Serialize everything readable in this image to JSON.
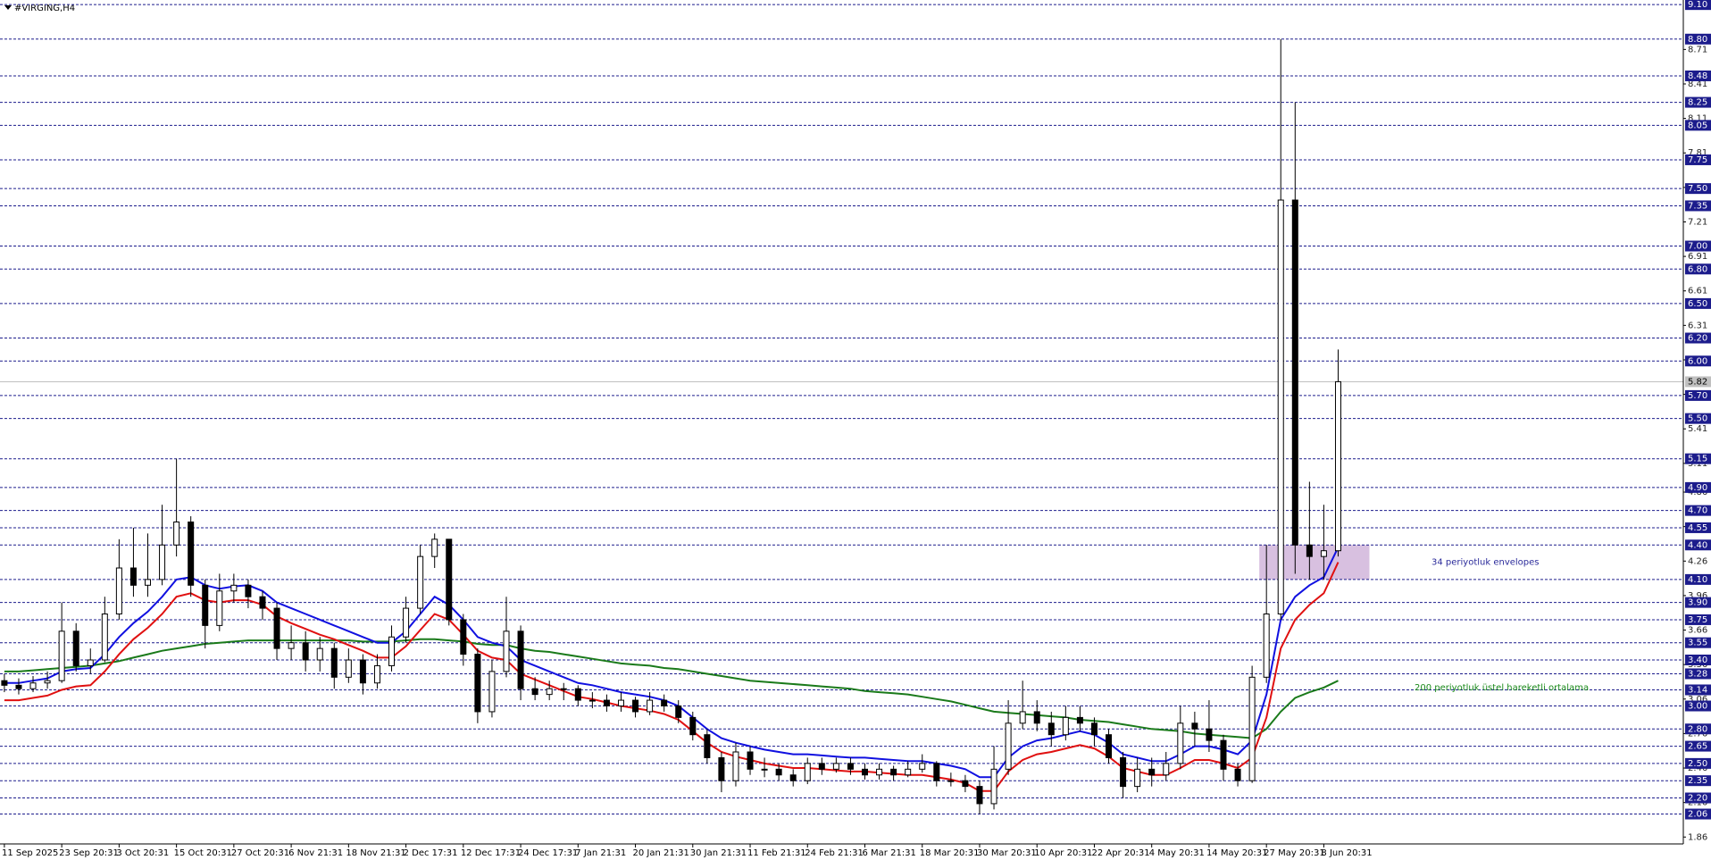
{
  "chart_data": {
    "type": "candlestick",
    "title": "#VIRGING,H4",
    "categories": [
      "11 Sep 2025",
      null,
      null,
      null,
      "23 Sep 20:31",
      null,
      null,
      null,
      "3 Oct 20:31",
      null,
      null,
      null,
      "15 Oct 20:31",
      null,
      null,
      null,
      "27 Oct 20:31",
      null,
      null,
      null,
      "6 Nov 21:31",
      null,
      null,
      null,
      "18 Nov 21:31",
      null,
      null,
      null,
      "2 Dec 17:31",
      null,
      null,
      null,
      "12 Dec 17:31",
      null,
      null,
      null,
      "24 Dec 17:31",
      null,
      null,
      null,
      "7 Jan 21:31",
      null,
      null,
      null,
      "20 Jan 21:31",
      null,
      null,
      null,
      "30 Jan 21:31",
      null,
      null,
      null,
      "11 Feb 21:31",
      null,
      null,
      null,
      "24 Feb 21:31",
      null,
      null,
      null,
      "6 Mar 21:31",
      null,
      null,
      null,
      "18 Mar 20:31",
      null,
      null,
      null,
      "30 Mar 20:31",
      null,
      null,
      null,
      "10 Apr 20:31",
      null,
      null,
      null,
      "22 Apr 20:31",
      null,
      null,
      null,
      "4 May 20:31",
      null,
      null,
      null,
      "14 May 20:31",
      null,
      null,
      null,
      "27 May 20:31",
      null,
      null,
      null,
      "8 Jun 20:31",
      null
    ],
    "ohlc": [
      [
        3.22,
        3.28,
        3.12,
        3.18
      ],
      [
        3.18,
        3.24,
        3.1,
        3.15
      ],
      [
        3.15,
        3.26,
        3.12,
        3.2
      ],
      [
        3.2,
        3.3,
        3.15,
        3.22
      ],
      [
        3.22,
        3.9,
        3.2,
        3.65
      ],
      [
        3.65,
        3.72,
        3.3,
        3.35
      ],
      [
        3.35,
        3.5,
        3.28,
        3.4
      ],
      [
        3.4,
        3.95,
        3.38,
        3.8
      ],
      [
        3.8,
        4.45,
        3.75,
        4.2
      ],
      [
        4.2,
        4.55,
        3.95,
        4.05
      ],
      [
        4.05,
        4.5,
        3.95,
        4.1
      ],
      [
        4.1,
        4.75,
        4.05,
        4.4
      ],
      [
        4.4,
        5.15,
        4.3,
        4.6
      ],
      [
        4.6,
        4.65,
        3.95,
        4.05
      ],
      [
        4.05,
        4.1,
        3.5,
        3.7
      ],
      [
        3.7,
        4.15,
        3.65,
        4.0
      ],
      [
        4.0,
        4.15,
        3.9,
        4.05
      ],
      [
        4.05,
        4.1,
        3.85,
        3.95
      ],
      [
        3.95,
        4.0,
        3.75,
        3.85
      ],
      [
        3.85,
        3.9,
        3.4,
        3.5
      ],
      [
        3.5,
        3.7,
        3.4,
        3.55
      ],
      [
        3.55,
        3.65,
        3.3,
        3.4
      ],
      [
        3.4,
        3.6,
        3.3,
        3.5
      ],
      [
        3.5,
        3.55,
        3.15,
        3.25
      ],
      [
        3.25,
        3.5,
        3.2,
        3.4
      ],
      [
        3.4,
        3.45,
        3.1,
        3.2
      ],
      [
        3.2,
        3.45,
        3.15,
        3.35
      ],
      [
        3.35,
        3.7,
        3.3,
        3.6
      ],
      [
        3.6,
        3.95,
        3.55,
        3.85
      ],
      [
        3.85,
        4.4,
        3.8,
        4.3
      ],
      [
        4.3,
        4.5,
        4.2,
        4.45
      ],
      [
        4.45,
        4.45,
        3.7,
        3.75
      ],
      [
        3.75,
        3.8,
        3.35,
        3.45
      ],
      [
        3.45,
        3.5,
        2.85,
        2.95
      ],
      [
        2.95,
        3.4,
        2.9,
        3.3
      ],
      [
        3.3,
        3.95,
        3.25,
        3.65
      ],
      [
        3.65,
        3.7,
        3.05,
        3.15
      ],
      [
        3.15,
        3.25,
        3.05,
        3.1
      ],
      [
        3.1,
        3.22,
        3.05,
        3.15
      ],
      [
        3.15,
        3.2,
        3.05,
        3.15
      ],
      [
        3.15,
        3.18,
        3.0,
        3.05
      ],
      [
        3.05,
        3.12,
        2.98,
        3.05
      ],
      [
        3.05,
        3.1,
        2.95,
        3.0
      ],
      [
        3.0,
        3.12,
        2.95,
        3.05
      ],
      [
        3.05,
        3.08,
        2.9,
        2.95
      ],
      [
        2.95,
        3.12,
        2.92,
        3.05
      ],
      [
        3.05,
        3.1,
        2.95,
        3.0
      ],
      [
        3.0,
        3.05,
        2.85,
        2.9
      ],
      [
        2.9,
        2.95,
        2.7,
        2.75
      ],
      [
        2.75,
        2.8,
        2.5,
        2.55
      ],
      [
        2.55,
        2.6,
        2.25,
        2.35
      ],
      [
        2.35,
        2.68,
        2.3,
        2.6
      ],
      [
        2.6,
        2.65,
        2.4,
        2.45
      ],
      [
        2.45,
        2.55,
        2.38,
        2.45
      ],
      [
        2.45,
        2.5,
        2.35,
        2.4
      ],
      [
        2.4,
        2.45,
        2.3,
        2.35
      ],
      [
        2.35,
        2.55,
        2.32,
        2.5
      ],
      [
        2.5,
        2.55,
        2.4,
        2.45
      ],
      [
        2.45,
        2.55,
        2.42,
        2.5
      ],
      [
        2.5,
        2.55,
        2.4,
        2.45
      ],
      [
        2.45,
        2.5,
        2.36,
        2.4
      ],
      [
        2.4,
        2.5,
        2.36,
        2.45
      ],
      [
        2.45,
        2.48,
        2.35,
        2.4
      ],
      [
        2.4,
        2.52,
        2.38,
        2.45
      ],
      [
        2.45,
        2.58,
        2.42,
        2.5
      ],
      [
        2.5,
        2.52,
        2.3,
        2.35
      ],
      [
        2.35,
        2.42,
        2.3,
        2.35
      ],
      [
        2.35,
        2.4,
        2.25,
        2.3
      ],
      [
        2.3,
        2.35,
        2.06,
        2.15
      ],
      [
        2.15,
        2.65,
        2.1,
        2.45
      ],
      [
        2.45,
        3.05,
        2.4,
        2.85
      ],
      [
        2.85,
        3.22,
        2.8,
        2.95
      ],
      [
        2.95,
        3.05,
        2.78,
        2.85
      ],
      [
        2.85,
        2.95,
        2.65,
        2.75
      ],
      [
        2.75,
        3.0,
        2.7,
        2.9
      ],
      [
        2.9,
        3.0,
        2.78,
        2.85
      ],
      [
        2.85,
        2.9,
        2.65,
        2.75
      ],
      [
        2.75,
        2.8,
        2.5,
        2.55
      ],
      [
        2.55,
        2.6,
        2.2,
        2.3
      ],
      [
        2.3,
        2.55,
        2.25,
        2.45
      ],
      [
        2.45,
        2.55,
        2.3,
        2.4
      ],
      [
        2.4,
        2.6,
        2.35,
        2.5
      ],
      [
        2.5,
        3.0,
        2.45,
        2.85
      ],
      [
        2.85,
        2.95,
        2.65,
        2.8
      ],
      [
        2.8,
        3.05,
        2.6,
        2.7
      ],
      [
        2.7,
        2.75,
        2.35,
        2.45
      ],
      [
        2.45,
        2.5,
        2.3,
        2.35
      ],
      [
        2.35,
        3.35,
        2.33,
        3.25
      ],
      [
        3.25,
        4.4,
        3.2,
        3.8
      ],
      [
        3.8,
        8.8,
        3.75,
        7.4
      ],
      [
        7.4,
        8.25,
        4.15,
        4.4
      ],
      [
        4.4,
        4.95,
        4.1,
        4.3
      ],
      [
        4.3,
        4.75,
        4.1,
        4.35
      ],
      [
        4.35,
        6.1,
        4.3,
        5.82
      ]
    ],
    "up_color": "#ffffff",
    "down_color": "#000000",
    "lines": [
      {
        "color": "#1a7a1a",
        "values": [
          3.3,
          3.3,
          3.31,
          3.32,
          3.33,
          3.34,
          3.35,
          3.37,
          3.39,
          3.42,
          3.45,
          3.48,
          3.5,
          3.52,
          3.54,
          3.55,
          3.56,
          3.57,
          3.57,
          3.57,
          3.57,
          3.57,
          3.57,
          3.57,
          3.57,
          3.56,
          3.56,
          3.56,
          3.57,
          3.58,
          3.58,
          3.57,
          3.56,
          3.54,
          3.53,
          3.53,
          3.5,
          3.48,
          3.47,
          3.45,
          3.43,
          3.41,
          3.39,
          3.37,
          3.36,
          3.35,
          3.33,
          3.32,
          3.3,
          3.28,
          3.26,
          3.24,
          3.22,
          3.21,
          3.2,
          3.19,
          3.18,
          3.17,
          3.16,
          3.15,
          3.13,
          3.12,
          3.11,
          3.1,
          3.08,
          3.06,
          3.04,
          3.01,
          2.98,
          2.95,
          2.94,
          2.93,
          2.92,
          2.91,
          2.9,
          2.88,
          2.87,
          2.86,
          2.84,
          2.82,
          2.8,
          2.79,
          2.78,
          2.76,
          2.75,
          2.74,
          2.73,
          2.72,
          2.8,
          2.95,
          3.07,
          3.12,
          3.16,
          3.22
        ]
      },
      {
        "color": "#1010e0",
        "values": [
          3.2,
          3.2,
          3.22,
          3.24,
          3.3,
          3.32,
          3.33,
          3.45,
          3.6,
          3.72,
          3.82,
          3.95,
          4.1,
          4.12,
          4.05,
          4.02,
          4.04,
          4.05,
          4.0,
          3.9,
          3.85,
          3.8,
          3.75,
          3.7,
          3.65,
          3.6,
          3.55,
          3.55,
          3.65,
          3.8,
          3.95,
          3.88,
          3.75,
          3.6,
          3.55,
          3.52,
          3.4,
          3.35,
          3.3,
          3.25,
          3.2,
          3.18,
          3.15,
          3.12,
          3.1,
          3.08,
          3.05,
          3.0,
          2.9,
          2.8,
          2.72,
          2.68,
          2.65,
          2.62,
          2.6,
          2.58,
          2.58,
          2.57,
          2.56,
          2.55,
          2.55,
          2.54,
          2.53,
          2.52,
          2.52,
          2.5,
          2.48,
          2.45,
          2.38,
          2.38,
          2.55,
          2.65,
          2.7,
          2.72,
          2.75,
          2.78,
          2.75,
          2.68,
          2.58,
          2.55,
          2.52,
          2.52,
          2.58,
          2.65,
          2.65,
          2.62,
          2.58,
          2.7,
          3.1,
          3.75,
          3.95,
          4.05,
          4.12,
          4.38
        ]
      },
      {
        "color": "#e01010",
        "values": [
          3.05,
          3.05,
          3.07,
          3.09,
          3.14,
          3.17,
          3.18,
          3.3,
          3.45,
          3.58,
          3.68,
          3.8,
          3.95,
          3.98,
          3.92,
          3.9,
          3.92,
          3.92,
          3.88,
          3.78,
          3.72,
          3.67,
          3.62,
          3.58,
          3.53,
          3.48,
          3.42,
          3.42,
          3.52,
          3.66,
          3.8,
          3.75,
          3.62,
          3.48,
          3.42,
          3.4,
          3.28,
          3.23,
          3.18,
          3.13,
          3.08,
          3.06,
          3.03,
          3.0,
          2.98,
          2.96,
          2.93,
          2.88,
          2.78,
          2.68,
          2.6,
          2.56,
          2.53,
          2.5,
          2.48,
          2.46,
          2.46,
          2.45,
          2.44,
          2.43,
          2.43,
          2.42,
          2.41,
          2.4,
          2.4,
          2.38,
          2.36,
          2.33,
          2.26,
          2.26,
          2.43,
          2.53,
          2.58,
          2.6,
          2.63,
          2.66,
          2.63,
          2.56,
          2.46,
          2.43,
          2.4,
          2.4,
          2.46,
          2.53,
          2.53,
          2.5,
          2.46,
          2.55,
          2.9,
          3.5,
          3.75,
          3.88,
          3.98,
          4.25
        ]
      }
    ],
    "levels": [
      {
        "value": 9.1,
        "label": "9.10"
      },
      {
        "value": 8.8,
        "label": "8.80"
      },
      {
        "value": 8.48,
        "label": "8.48"
      },
      {
        "value": 8.25,
        "label": "8.25"
      },
      {
        "value": 8.05,
        "label": "8.05"
      },
      {
        "value": 7.75,
        "label": "7.75"
      },
      {
        "value": 7.5,
        "label": "7.50"
      },
      {
        "value": 7.35,
        "label": "7.35"
      },
      {
        "value": 7.0,
        "label": "7.00"
      },
      {
        "value": 6.8,
        "label": "6.80"
      },
      {
        "value": 6.5,
        "label": "6.50"
      },
      {
        "value": 6.2,
        "label": "6.20"
      },
      {
        "value": 6.0,
        "label": "6.00"
      },
      {
        "value": 5.7,
        "label": "5.70"
      },
      {
        "value": 5.5,
        "label": "5.50"
      },
      {
        "value": 5.15,
        "label": "5.15"
      },
      {
        "value": 4.9,
        "label": "4.90"
      },
      {
        "value": 4.7,
        "label": "4.70"
      },
      {
        "value": 4.55,
        "label": "4.55"
      },
      {
        "value": 4.4,
        "label": "4.40"
      },
      {
        "value": 4.1,
        "label": "4.10"
      },
      {
        "value": 3.9,
        "label": "3.90"
      },
      {
        "value": 3.75,
        "label": "3.75"
      },
      {
        "value": 3.55,
        "label": "3.55"
      },
      {
        "value": 3.4,
        "label": "3.40"
      },
      {
        "value": 3.28,
        "label": "3.28"
      },
      {
        "value": 3.14,
        "label": "3.14"
      },
      {
        "value": 3.0,
        "label": "3.00"
      },
      {
        "value": 2.8,
        "label": "2.80"
      },
      {
        "value": 2.65,
        "label": "2.65"
      },
      {
        "value": 2.5,
        "label": "2.50"
      },
      {
        "value": 2.35,
        "label": "2.35"
      },
      {
        "value": 2.2,
        "label": "2.20"
      },
      {
        "value": 2.06,
        "label": "2.06"
      }
    ],
    "level_color": "#1c1c8c",
    "current_price": 5.82,
    "zone": [
      4.1,
      4.4
    ],
    "zone_color": "#d8c0e0",
    "annotations": [
      {
        "text": "34 periyotluk envelopes",
        "color": "#2a2a9a"
      },
      {
        "text": "200 periyotluk üstel hareketli ortalama",
        "color": "#1a8a1a"
      }
    ],
    "ylim": [
      1.8,
      9.14
    ],
    "yticks": [
      1.86,
      2.16,
      2.46,
      2.76,
      3.06,
      3.36,
      3.66,
      3.96,
      4.26,
      4.56,
      4.86,
      5.11,
      5.41,
      5.71,
      6.01,
      6.31,
      6.61,
      6.91,
      7.21,
      7.51,
      7.81,
      8.11,
      8.41,
      8.71
    ]
  }
}
